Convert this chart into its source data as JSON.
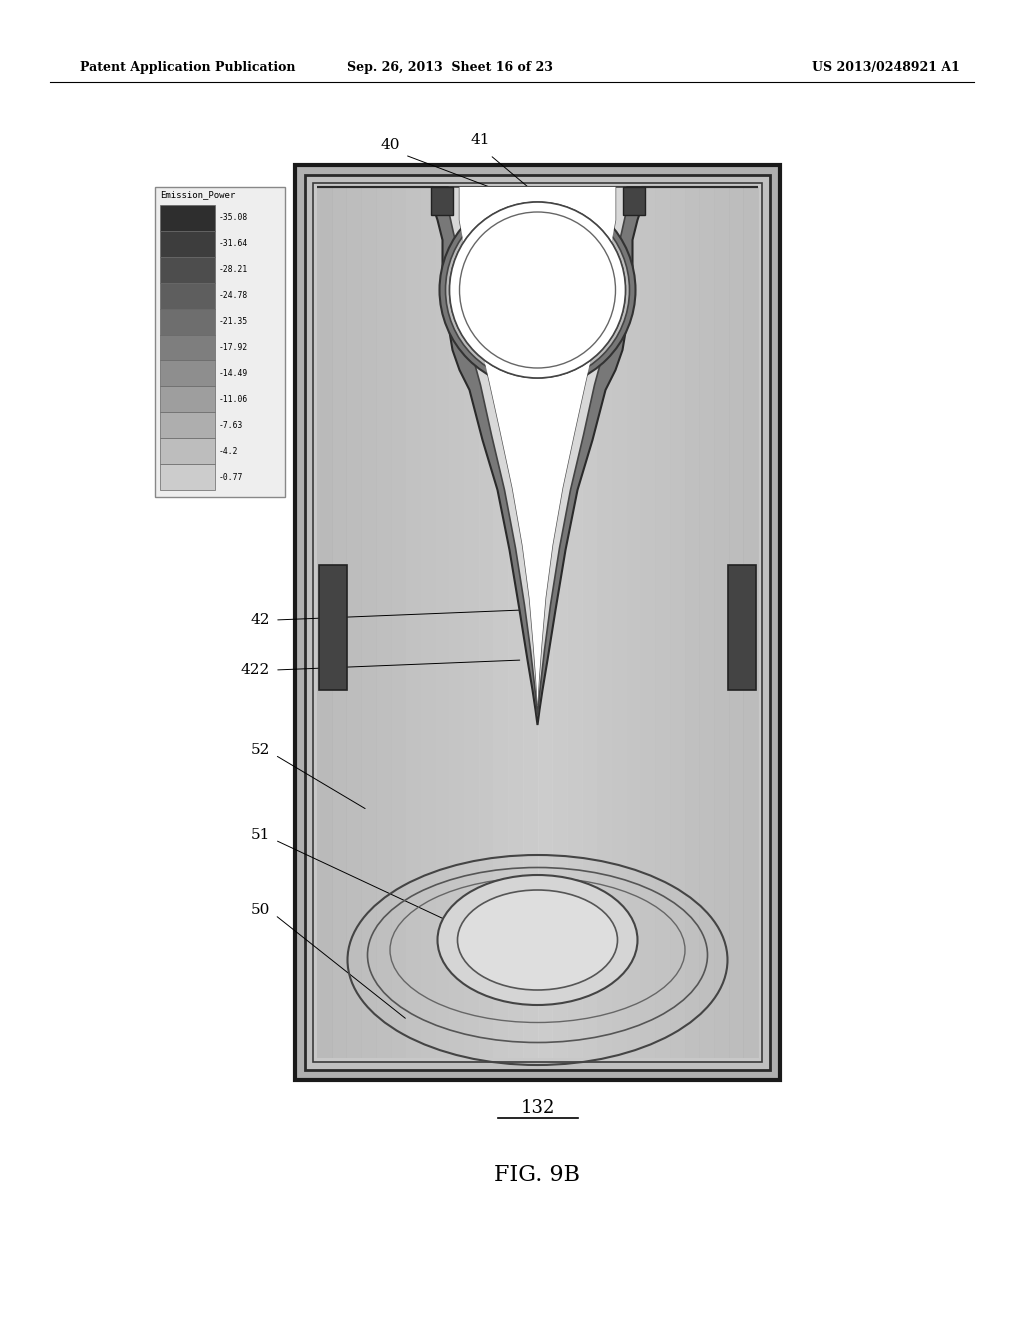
{
  "bg_color": "#ffffff",
  "header_left": "Patent Application Publication",
  "header_center": "Sep. 26, 2013  Sheet 16 of 23",
  "header_right": "US 2013/0248921 A1",
  "fig_label": "132",
  "fig_title": "FIG. 9B",
  "colorbar_title": "Emission_Power",
  "colorbar_values": [
    "35.08",
    "31.64",
    "28.21",
    "24.78",
    "21.35",
    "17.92",
    "14.49",
    "11.06",
    "7.63",
    "4.2",
    "0.77"
  ],
  "colorbar_colors_top_to_bottom": [
    "#2e2e2e",
    "#3d3d3d",
    "#4d4d4d",
    "#5e5e5e",
    "#6e6e6e",
    "#7e7e7e",
    "#8e8e8e",
    "#9e9e9e",
    "#aeaeae",
    "#bdbdbd",
    "#cccccc"
  ]
}
